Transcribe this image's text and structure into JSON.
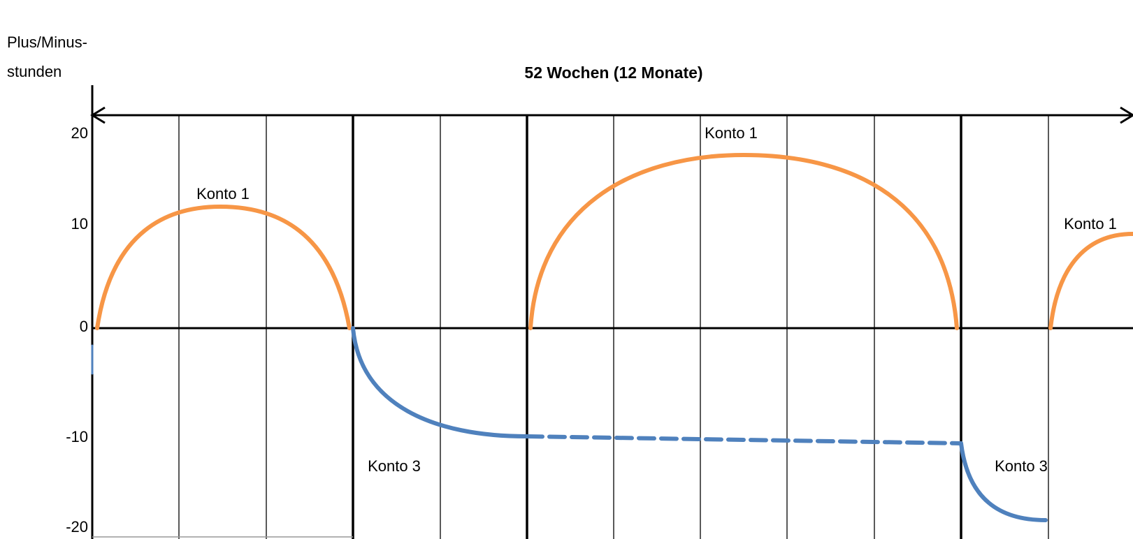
{
  "axis": {
    "ylabel_line1": "Plus/Minus-",
    "ylabel_line2": "stunden",
    "xspan_label": "52 Wochen (12 Monate)",
    "yticks": [
      "20",
      "10",
      "0",
      "-10",
      "-20"
    ]
  },
  "labels": {
    "konto1_a": "Konto 1",
    "konto1_b": "Konto 1",
    "konto1_c": "Konto 1",
    "konto3_a": "Konto 3",
    "konto3_b": "Konto 3"
  },
  "colors": {
    "konto1": "#F79646",
    "konto3": "#4F81BD"
  }
}
